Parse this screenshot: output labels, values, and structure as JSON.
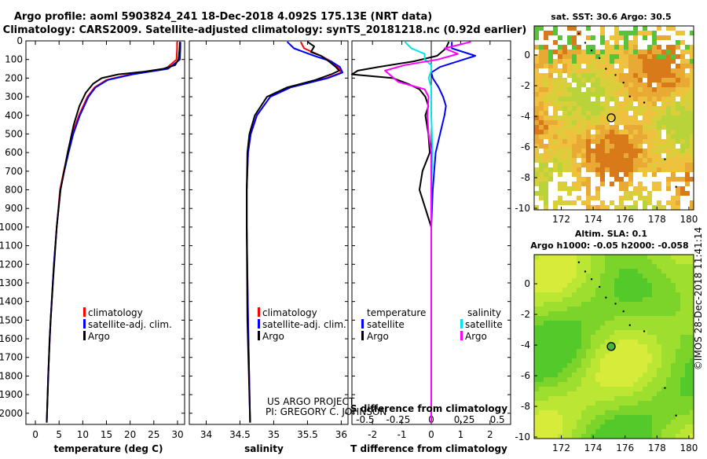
{
  "header": {
    "line1": "Argo profile: aoml 5903824_241 18-Dec-2018 4.092S 175.13E (NRT data)",
    "line2": "Climatology: CARS2009. Satellite-adjusted climatology: synTS_20181218.nc (0.92d earlier)"
  },
  "colors": {
    "climatology": "#ff0000",
    "satellite": "#0000ff",
    "argo": "#000000",
    "sat_salinity": "#00e5e5",
    "argo_salinity": "#ff00ff"
  },
  "depth_axis": {
    "ticks": [
      "0",
      "100",
      "200",
      "300",
      "400",
      "500",
      "600",
      "700",
      "800",
      "900",
      "1000",
      "1100",
      "1200",
      "1300",
      "1400",
      "1500",
      "1600",
      "1700",
      "1800",
      "1900",
      "2000"
    ]
  },
  "chart_data": [
    {
      "type": "line",
      "name": "temperature profile",
      "xlabel": "temperature (deg C)",
      "xlim": [
        -2,
        31.5
      ],
      "ylim": [
        2060,
        0
      ],
      "xticks": [
        "0",
        "5",
        "10",
        "15",
        "20",
        "25",
        "30"
      ],
      "xtick_values": [
        0,
        5,
        10,
        15,
        20,
        25,
        30
      ],
      "legend": [
        "climatology",
        "satellite-adj. clim.",
        "Argo"
      ],
      "series": [
        {
          "name": "climatology",
          "color": "#ff0000",
          "depth": [
            5,
            40,
            100,
            150,
            180,
            210,
            250,
            300,
            400,
            500,
            600,
            700,
            800,
            1000,
            1200,
            1500,
            1800,
            2050
          ],
          "values": [
            29.9,
            29.9,
            29.8,
            27.5,
            20,
            15,
            12.5,
            11,
            9.2,
            7.8,
            6.9,
            6.0,
            5.2,
            4.5,
            3.9,
            3.2,
            2.7,
            2.4
          ]
        },
        {
          "name": "satellite-adj. clim.",
          "color": "#0000ff",
          "depth": [
            5,
            40,
            100,
            150,
            180,
            210,
            250,
            300,
            400,
            500,
            600,
            700,
            800,
            1000,
            1200,
            1500,
            1800,
            2050
          ],
          "values": [
            30.6,
            30.6,
            30.5,
            28,
            20.5,
            15.3,
            12.7,
            11.2,
            9.4,
            8.0,
            7.0,
            6.1,
            5.3,
            4.5,
            3.9,
            3.2,
            2.7,
            2.4
          ]
        },
        {
          "name": "Argo",
          "color": "#000000",
          "depth": [
            5,
            50,
            100,
            130,
            150,
            165,
            180,
            200,
            230,
            280,
            350,
            450,
            600,
            800,
            1000,
            1300,
            1600,
            2050
          ],
          "values": [
            30.5,
            30.4,
            30.2,
            29.5,
            27,
            23,
            17.5,
            14,
            12.2,
            10.6,
            9.3,
            8.1,
            6.8,
            5.3,
            4.5,
            3.7,
            3.0,
            2.4
          ]
        }
      ]
    },
    {
      "type": "line",
      "name": "salinity profile",
      "xlabel": "salinity",
      "xlim": [
        33.75,
        36.1
      ],
      "ylim": [
        2060,
        0
      ],
      "xticks": [
        "34",
        "34.5",
        "35",
        "35.5",
        "36"
      ],
      "xtick_values": [
        34,
        34.5,
        35,
        35.5,
        36
      ],
      "legend": [
        "climatology",
        "satellite-adj. clim.",
        "Argo"
      ],
      "series": [
        {
          "name": "climatology",
          "color": "#ff0000",
          "depth": [
            5,
            40,
            80,
            110,
            140,
            170,
            200,
            250,
            300,
            400,
            500,
            600,
            800,
            1000,
            1500,
            2050
          ],
          "values": [
            35.4,
            35.45,
            35.7,
            35.85,
            35.95,
            36.0,
            35.78,
            35.25,
            34.95,
            34.75,
            34.66,
            34.62,
            34.6,
            34.6,
            34.62,
            34.65
          ]
        },
        {
          "name": "satellite-adj. clim.",
          "color": "#0000ff",
          "depth": [
            5,
            40,
            80,
            110,
            140,
            170,
            200,
            250,
            300,
            400,
            500,
            600,
            800,
            1000,
            1500,
            2050
          ],
          "values": [
            35.2,
            35.3,
            35.6,
            35.85,
            35.98,
            36.02,
            35.8,
            35.25,
            34.95,
            34.75,
            34.66,
            34.62,
            34.6,
            34.6,
            34.62,
            34.65
          ]
        },
        {
          "name": "Argo",
          "color": "#000000",
          "depth": [
            5,
            30,
            60,
            80,
            100,
            120,
            140,
            160,
            180,
            210,
            250,
            300,
            400,
            500,
            600,
            800,
            1000,
            1500,
            2050
          ],
          "values": [
            35.5,
            35.6,
            35.55,
            35.7,
            35.78,
            35.85,
            35.92,
            35.97,
            35.85,
            35.62,
            35.2,
            34.9,
            34.72,
            34.64,
            34.61,
            34.6,
            34.6,
            34.61,
            34.65
          ]
        }
      ]
    },
    {
      "type": "line",
      "name": "difference from climatology",
      "xlabel": "T difference from climatology",
      "xlabel2": "S difference from climatology",
      "xlim": [
        -2.7,
        2.7
      ],
      "ylim": [
        2060,
        0
      ],
      "xticks": [
        "-2",
        "-1",
        "0",
        "1",
        "2"
      ],
      "xtick_values": [
        -2,
        -1,
        0,
        1,
        2
      ],
      "sticks": [
        "-0.5",
        "-0.25",
        "0",
        "0.25",
        "0.5"
      ],
      "stick_values": [
        -0.5,
        -0.25,
        0,
        0.25,
        0.5
      ],
      "legend_left_title": "temperature",
      "legend_right_title": "salinity",
      "legend_left": [
        "satellite",
        "Argo"
      ],
      "legend_right": [
        "satellite",
        "Argo"
      ],
      "series": [
        {
          "name": "T satellite",
          "color": "#0000ff",
          "depth": [
            5,
            40,
            80,
            110,
            140,
            170,
            200,
            250,
            300,
            350,
            400,
            500,
            600,
            700,
            800,
            1000,
            1500,
            2050
          ],
          "values": [
            0.7,
            0.7,
            1.5,
            0.9,
            0.3,
            0.0,
            0.05,
            0.25,
            0.4,
            0.5,
            0.45,
            0.3,
            0.15,
            0.1,
            0.05,
            0.0,
            0.0,
            0.0
          ]
        },
        {
          "name": "T Argo",
          "color": "#000000",
          "depth": [
            5,
            40,
            80,
            110,
            140,
            160,
            180,
            200,
            230,
            260,
            300,
            350,
            400,
            500,
            600,
            700,
            800,
            900,
            1000,
            1200,
            1500,
            2050
          ],
          "values": [
            0.6,
            0.5,
            0.2,
            -0.6,
            -1.8,
            -2.5,
            -2.7,
            -1.3,
            -0.8,
            -0.4,
            -0.2,
            -0.1,
            -0.2,
            -0.1,
            -0.05,
            -0.3,
            -0.4,
            -0.2,
            0.0,
            0.0,
            0.0,
            0.0
          ]
        },
        {
          "name": "S satellite",
          "color": "#00e5e5",
          "depth": [
            5,
            40,
            70,
            100,
            130,
            160,
            200,
            250,
            300,
            400,
            600,
            800,
            1000,
            1500,
            2050
          ],
          "values": [
            -0.2,
            -0.15,
            -0.05,
            -0.05,
            0.0,
            0.0,
            -0.02,
            0.0,
            0.0,
            0.0,
            0.01,
            0.0,
            0.0,
            0.0,
            0.0
          ]
        },
        {
          "name": "S Argo",
          "color": "#ff00ff",
          "depth": [
            5,
            40,
            70,
            100,
            130,
            160,
            190,
            220,
            260,
            300,
            400,
            500,
            600,
            800,
            1000,
            1500,
            2050
          ],
          "values": [
            0.3,
            0.1,
            0.2,
            0.05,
            -0.2,
            -0.35,
            -0.3,
            -0.25,
            -0.05,
            -0.02,
            -0.03,
            -0.02,
            0.0,
            0.0,
            0.0,
            0.0,
            0.0
          ]
        }
      ]
    },
    {
      "type": "heatmap",
      "name": "satellite SST map",
      "title": "sat. SST: 30.6 Argo: 30.5",
      "xlim": [
        170.3,
        180.3
      ],
      "ylim": [
        -10.1,
        1.9
      ],
      "xticks": [
        "172",
        "174",
        "176",
        "178",
        "180"
      ],
      "xtick_values": [
        172,
        174,
        176,
        178,
        180
      ],
      "yticks": [
        "0",
        "-2",
        "-4",
        "-6",
        "-8",
        "-10"
      ],
      "ytick_values": [
        0,
        -2,
        -4,
        -6,
        -8,
        -10
      ],
      "argo_position": {
        "lon": 175.13,
        "lat": -4.092
      }
    },
    {
      "type": "heatmap",
      "name": "altimetry SLA map",
      "title": "Altim. SLA: 0.1",
      "subtitle": "Argo h1000: -0.05 h2000: -0.058",
      "xlim": [
        170.3,
        180.3
      ],
      "ylim": [
        -10.1,
        1.9
      ],
      "xticks": [
        "172",
        "174",
        "176",
        "178",
        "180"
      ],
      "xtick_values": [
        172,
        174,
        176,
        178,
        180
      ],
      "yticks": [
        "0",
        "-2",
        "-4",
        "-6",
        "-8",
        "-10"
      ],
      "ytick_values": [
        0,
        -2,
        -4,
        -6,
        -8,
        -10
      ],
      "argo_position": {
        "lon": 175.13,
        "lat": -4.092
      }
    }
  ],
  "credits": {
    "project": "US ARGO PROJECT",
    "pi": "PI: GREGORY C. JOHNSON",
    "imos": "©IMOS 28-Dec-2018 11:41:14"
  }
}
